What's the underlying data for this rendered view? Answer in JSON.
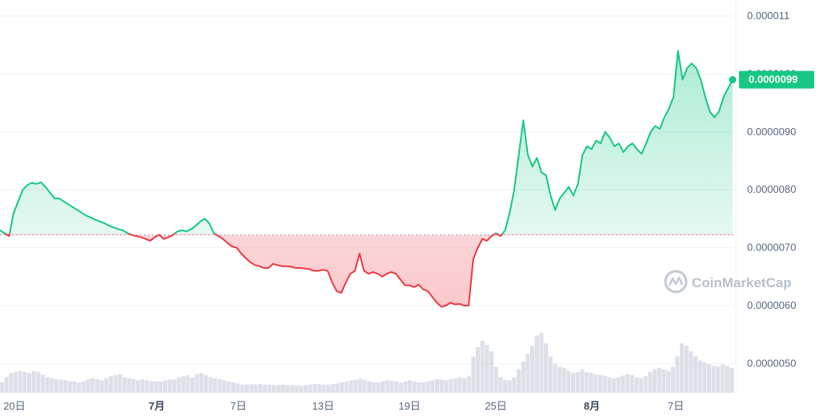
{
  "chart_data": {
    "type": "area",
    "y_axis_ticks": [
      "0.000011",
      "0.0000100",
      "0.0000090",
      "0.0000080",
      "0.0000070",
      "0.0000060",
      "0.0000050"
    ],
    "y_tick_values": [
      1.1e-05,
      1e-05,
      9e-06,
      8e-06,
      7e-06,
      6e-06,
      5e-06
    ],
    "x_axis_ticks": [
      {
        "label": "20日",
        "bold": false
      },
      {
        "label": "7月",
        "bold": true
      },
      {
        "label": "7日",
        "bold": false
      },
      {
        "label": "13日",
        "bold": false
      },
      {
        "label": "19日",
        "bold": false
      },
      {
        "label": "25日",
        "bold": false
      },
      {
        "label": "8月",
        "bold": true
      },
      {
        "label": "7日",
        "bold": false
      }
    ],
    "baseline": 7.22e-06,
    "current_price_label": "0.0000099",
    "current_price": 9.9e-06,
    "colors": {
      "up": "#16c784",
      "down": "#ea3943",
      "badge": "#16c784"
    },
    "price_series": [
      7.3e-06,
      7.25e-06,
      7.2e-06,
      7.6e-06,
      7.8e-06,
      8e-06,
      8.08e-06,
      8.12e-06,
      8.1e-06,
      8.13e-06,
      8.05e-06,
      7.95e-06,
      7.85e-06,
      7.85e-06,
      7.8e-06,
      7.75e-06,
      7.7e-06,
      7.65e-06,
      7.6e-06,
      7.55e-06,
      7.52e-06,
      7.48e-06,
      7.45e-06,
      7.42e-06,
      7.38e-06,
      7.35e-06,
      7.32e-06,
      7.3e-06,
      7.25e-06,
      7.22e-06,
      7.2e-06,
      7.18e-06,
      7.15e-06,
      7.12e-06,
      7.18e-06,
      7.22e-06,
      7.15e-06,
      7.18e-06,
      7.22e-06,
      7.28e-06,
      7.3e-06,
      7.28e-06,
      7.32e-06,
      7.38e-06,
      7.45e-06,
      7.5e-06,
      7.42e-06,
      7.25e-06,
      7.2e-06,
      7.15e-06,
      7.08e-06,
      7.02e-06,
      7e-06,
      6.9e-06,
      6.82e-06,
      6.75e-06,
      6.7e-06,
      6.68e-06,
      6.65e-06,
      6.65e-06,
      6.72e-06,
      6.7e-06,
      6.68e-06,
      6.68e-06,
      6.67e-06,
      6.65e-06,
      6.65e-06,
      6.64e-06,
      6.63e-06,
      6.6e-06,
      6.6e-06,
      6.62e-06,
      6.6e-06,
      6.4e-06,
      6.25e-06,
      6.22e-06,
      6.4e-06,
      6.55e-06,
      6.6e-06,
      6.9e-06,
      6.6e-06,
      6.55e-06,
      6.58e-06,
      6.55e-06,
      6.5e-06,
      6.55e-06,
      6.58e-06,
      6.55e-06,
      6.45e-06,
      6.35e-06,
      6.35e-06,
      6.32e-06,
      6.36e-06,
      6.28e-06,
      6.25e-06,
      6.15e-06,
      6.05e-06,
      5.98e-06,
      6e-06,
      6.05e-06,
      6.02e-06,
      6.03e-06,
      6e-06,
      6e-06,
      6.8e-06,
      7e-06,
      7.15e-06,
      7.12e-06,
      7.2e-06,
      7.25e-06,
      7.2e-06,
      7.3e-06,
      7.6e-06,
      8e-06,
      8.6e-06,
      9.2e-06,
      8.6e-06,
      8.4e-06,
      8.55e-06,
      8.3e-06,
      8.25e-06,
      7.9e-06,
      7.65e-06,
      7.85e-06,
      7.95e-06,
      8.05e-06,
      7.9e-06,
      8.1e-06,
      8.6e-06,
      8.75e-06,
      8.7e-06,
      8.85e-06,
      8.8e-06,
      9e-06,
      8.9e-06,
      8.75e-06,
      8.8e-06,
      8.65e-06,
      8.75e-06,
      8.8e-06,
      8.7e-06,
      8.62e-06,
      8.8e-06,
      9e-06,
      9.1e-06,
      9.05e-06,
      9.25e-06,
      9.4e-06,
      9.6e-06,
      1.04e-05,
      9.9e-06,
      1.01e-05,
      1.018e-05,
      1.01e-05,
      9.9e-06,
      9.6e-06,
      9.35e-06,
      9.25e-06,
      9.35e-06,
      9.6e-06,
      9.75e-06,
      9.9e-06
    ],
    "volume_series": [
      0.2,
      0.3,
      0.38,
      0.4,
      0.42,
      0.4,
      0.38,
      0.42,
      0.41,
      0.35,
      0.3,
      0.28,
      0.26,
      0.25,
      0.24,
      0.22,
      0.22,
      0.2,
      0.22,
      0.26,
      0.28,
      0.26,
      0.24,
      0.28,
      0.32,
      0.34,
      0.36,
      0.3,
      0.28,
      0.26,
      0.24,
      0.26,
      0.24,
      0.22,
      0.22,
      0.22,
      0.24,
      0.26,
      0.26,
      0.3,
      0.32,
      0.34,
      0.3,
      0.36,
      0.38,
      0.34,
      0.3,
      0.28,
      0.26,
      0.24,
      0.22,
      0.2,
      0.18,
      0.16,
      0.16,
      0.17,
      0.16,
      0.17,
      0.16,
      0.16,
      0.15,
      0.15,
      0.16,
      0.15,
      0.15,
      0.14,
      0.14,
      0.15,
      0.16,
      0.17,
      0.17,
      0.16,
      0.16,
      0.17,
      0.18,
      0.2,
      0.22,
      0.24,
      0.25,
      0.27,
      0.25,
      0.22,
      0.2,
      0.2,
      0.22,
      0.24,
      0.23,
      0.22,
      0.2,
      0.22,
      0.24,
      0.22,
      0.2,
      0.2,
      0.22,
      0.24,
      0.26,
      0.25,
      0.24,
      0.26,
      0.28,
      0.3,
      0.28,
      0.32,
      0.7,
      0.88,
      1.0,
      0.92,
      0.8,
      0.5,
      0.3,
      0.25,
      0.24,
      0.3,
      0.45,
      0.6,
      0.75,
      0.9,
      1.1,
      1.15,
      0.95,
      0.7,
      0.55,
      0.5,
      0.48,
      0.42,
      0.38,
      0.4,
      0.45,
      0.4,
      0.38,
      0.35,
      0.34,
      0.33,
      0.3,
      0.28,
      0.3,
      0.33,
      0.36,
      0.34,
      0.3,
      0.28,
      0.32,
      0.4,
      0.45,
      0.48,
      0.45,
      0.42,
      0.5,
      0.7,
      0.95,
      0.9,
      0.8,
      0.7,
      0.62,
      0.58,
      0.55,
      0.52,
      0.5,
      0.55,
      0.52,
      0.48
    ],
    "watermark": "CoinMarketCap",
    "grid": true
  }
}
